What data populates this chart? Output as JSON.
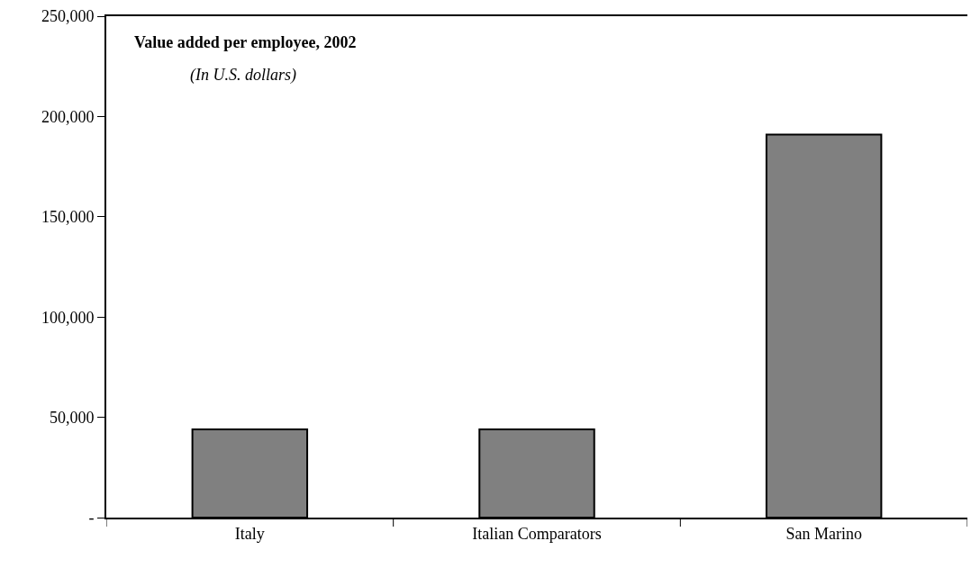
{
  "chart_data": {
    "type": "bar",
    "title": "Value added per employee, 2002",
    "subtitle": "(In U.S. dollars)",
    "categories": [
      "Italy",
      "Italian Comparators",
      "San Marino"
    ],
    "values": [
      44000,
      44000,
      191000
    ],
    "color": "#808080",
    "ylim": [
      0,
      250000
    ],
    "yticks": [
      {
        "value": 0,
        "label": "-"
      },
      {
        "value": 50000,
        "label": "50,000"
      },
      {
        "value": 100000,
        "label": "100,000"
      },
      {
        "value": 150000,
        "label": "150,000"
      },
      {
        "value": 200000,
        "label": "200,000"
      },
      {
        "value": 250000,
        "label": "250,000"
      }
    ],
    "data_labels": false
  }
}
